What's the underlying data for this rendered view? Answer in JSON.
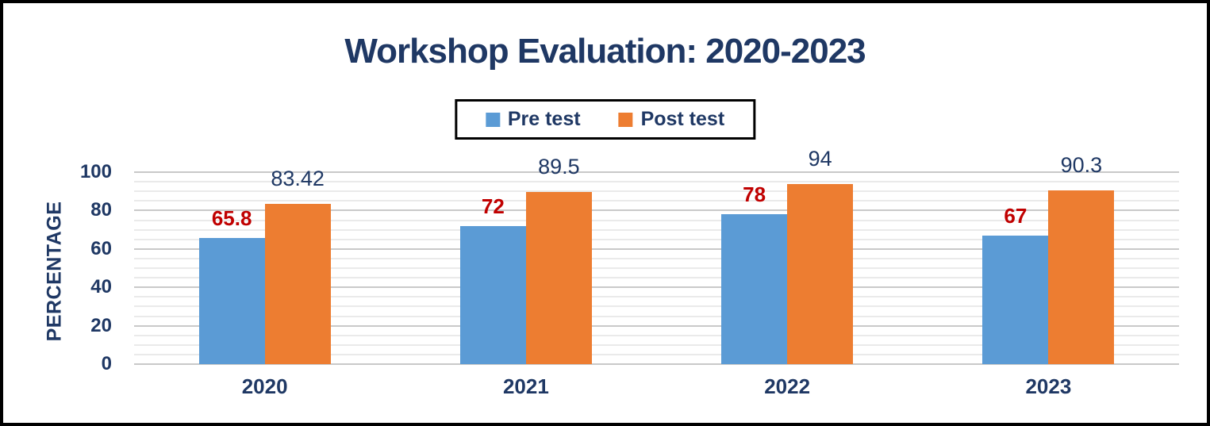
{
  "chart_data": {
    "type": "bar",
    "title": "Workshop Evaluation: 2020-2023",
    "xlabel": "",
    "ylabel": "PERCENTAGE",
    "categories": [
      "2020",
      "2021",
      "2022",
      "2023"
    ],
    "series": [
      {
        "name": "Pre test",
        "values": [
          65.8,
          72,
          78,
          67
        ],
        "labels": [
          "65.8",
          "72",
          "78",
          "67"
        ],
        "color": "#5B9BD5",
        "label_color": "#C00000"
      },
      {
        "name": "Post test",
        "values": [
          83.42,
          89.5,
          94,
          90.3
        ],
        "labels": [
          "83.42",
          "89.5",
          "94",
          "90.3"
        ],
        "color": "#ED7D31",
        "label_color": "#1F3864"
      }
    ],
    "ylim": [
      0,
      100
    ],
    "yticks": [
      0,
      20,
      40,
      60,
      80,
      100
    ],
    "major_unit": 20,
    "minor_unit": 5,
    "grid": true,
    "legend_position": "top-center"
  },
  "colors": {
    "title": "#1F3864",
    "axis_text": "#1F3864",
    "pre_series": "#5B9BD5",
    "post_series": "#ED7D31",
    "pre_data_label": "#C00000",
    "post_data_label": "#1F3864",
    "gridline_major": "#C9C9C9",
    "gridline_minor": "#EAEAEA",
    "outer_border": "#000000",
    "legend_border": "#000000",
    "background": "#ffffff"
  }
}
